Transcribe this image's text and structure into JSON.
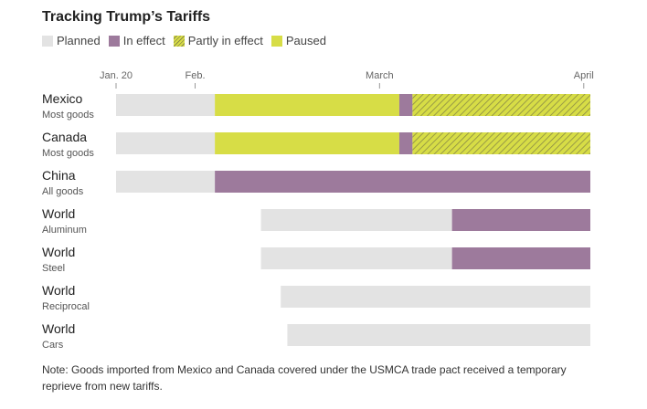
{
  "chart_data": {
    "type": "timeline",
    "title": "Tracking Trump’s Tariffs",
    "legend": [
      {
        "key": "planned",
        "label": "Planned",
        "color": "#e3e3e3",
        "pattern": false
      },
      {
        "key": "in_effect",
        "label": "In effect",
        "color": "#9d7a9c",
        "pattern": false
      },
      {
        "key": "partly",
        "label": "Partly in effect",
        "color": "#d7dd46",
        "pattern": true
      },
      {
        "key": "paused",
        "label": "Paused",
        "color": "#d7dd46",
        "pattern": false
      }
    ],
    "x_ticks": [
      {
        "date": "2025-01-20",
        "label": "Jan. 20"
      },
      {
        "date": "2025-02-01",
        "label": "Feb."
      },
      {
        "date": "2025-03-01",
        "label": "March"
      },
      {
        "date": "2025-04-01",
        "label": "April"
      }
    ],
    "xlim": [
      "2025-01-20",
      "2025-04-02"
    ],
    "rows": [
      {
        "name": "Mexico",
        "sub": "Most goods",
        "segments": [
          {
            "status": "planned",
            "start": "2025-01-20",
            "end": "2025-02-04"
          },
          {
            "status": "paused",
            "start": "2025-02-04",
            "end": "2025-03-04"
          },
          {
            "status": "in_effect",
            "start": "2025-03-04",
            "end": "2025-03-06"
          },
          {
            "status": "partly",
            "start": "2025-03-06",
            "end": "2025-04-02"
          }
        ]
      },
      {
        "name": "Canada",
        "sub": "Most goods",
        "segments": [
          {
            "status": "planned",
            "start": "2025-01-20",
            "end": "2025-02-04"
          },
          {
            "status": "paused",
            "start": "2025-02-04",
            "end": "2025-03-04"
          },
          {
            "status": "in_effect",
            "start": "2025-03-04",
            "end": "2025-03-06"
          },
          {
            "status": "partly",
            "start": "2025-03-06",
            "end": "2025-04-02"
          }
        ]
      },
      {
        "name": "China",
        "sub": "All goods",
        "segments": [
          {
            "status": "planned",
            "start": "2025-01-20",
            "end": "2025-02-04"
          },
          {
            "status": "in_effect",
            "start": "2025-02-04",
            "end": "2025-04-02"
          }
        ]
      },
      {
        "name": "World",
        "sub": "Aluminum",
        "segments": [
          {
            "status": "planned",
            "start": "2025-02-11",
            "end": "2025-03-12"
          },
          {
            "status": "in_effect",
            "start": "2025-03-12",
            "end": "2025-04-02"
          }
        ]
      },
      {
        "name": "World",
        "sub": "Steel",
        "segments": [
          {
            "status": "planned",
            "start": "2025-02-11",
            "end": "2025-03-12"
          },
          {
            "status": "in_effect",
            "start": "2025-03-12",
            "end": "2025-04-02"
          }
        ]
      },
      {
        "name": "World",
        "sub": "Reciprocal",
        "segments": [
          {
            "status": "planned",
            "start": "2025-02-14",
            "end": "2025-04-02"
          }
        ]
      },
      {
        "name": "World",
        "sub": "Cars",
        "segments": [
          {
            "status": "planned",
            "start": "2025-02-15",
            "end": "2025-04-02"
          }
        ]
      }
    ],
    "note": "Note: Goods imported from Mexico and Canada covered under the USMCA trade pact received a temporary reprieve from new tariffs."
  }
}
